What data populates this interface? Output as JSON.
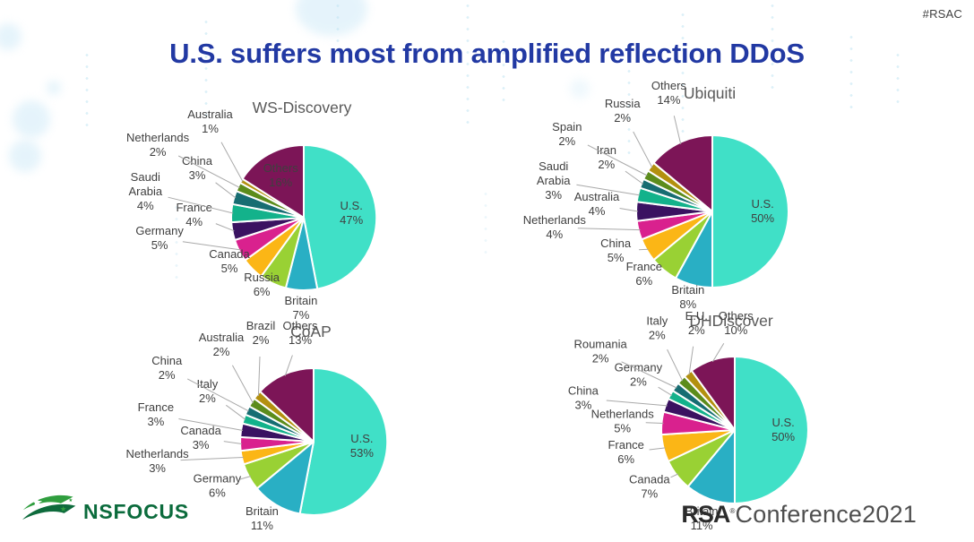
{
  "slide": {
    "title": "U.S. suffers most from amplified reflection DDoS",
    "hashtag": "#RSAC",
    "title_color": "#2239A3",
    "hashtag_color": "#3E3E3E",
    "background_color": "#FFFFFF"
  },
  "palette": [
    "#40E0C7",
    "#29AFC4",
    "#99D134",
    "#FBB616",
    "#D9218E",
    "#3A1261",
    "#13B28B",
    "#176D72",
    "#5C8C1B",
    "#B3900F",
    "#7C1557"
  ],
  "chart_style": {
    "title_color": "#595959",
    "label_color": "#3F3F3F",
    "leader_line_color": "#A9A9A9",
    "slice_border_color": "#FFFFFF"
  },
  "chart_data": [
    {
      "type": "pie",
      "title": "WS-Discovery",
      "unit": "%",
      "labels": [
        "U.S.",
        "Britain",
        "Russia",
        "Canada",
        "Germany",
        "France",
        "Saudi Arabia",
        "China",
        "Netherlands",
        "Australia",
        "Others"
      ],
      "values": [
        47,
        7,
        6,
        5,
        5,
        4,
        4,
        3,
        2,
        1,
        16
      ],
      "inside_labels": [
        "U.S.",
        "Others"
      ],
      "legend": "none"
    },
    {
      "type": "pie",
      "title": "Ubiquiti",
      "unit": "%",
      "labels": [
        "U.S.",
        "Britain",
        "France",
        "China",
        "Netherlands",
        "Australia",
        "Saudi Arabia",
        "Iran",
        "Spain",
        "Russia",
        "Others"
      ],
      "values": [
        50,
        8,
        6,
        5,
        4,
        4,
        3,
        2,
        2,
        2,
        14
      ],
      "inside_labels": [
        "U.S."
      ],
      "legend": "none"
    },
    {
      "type": "pie",
      "title": "CoAP",
      "unit": "%",
      "labels": [
        "U.S.",
        "Britain",
        "Germany",
        "Netherlands",
        "Canada",
        "France",
        "Italy",
        "China",
        "Australia",
        "Brazil",
        "Others"
      ],
      "values": [
        53,
        11,
        6,
        3,
        3,
        3,
        2,
        2,
        2,
        2,
        13
      ],
      "inside_labels": [
        "U.S."
      ],
      "legend": "none"
    },
    {
      "type": "pie",
      "title": "DHDiscover",
      "unit": "%",
      "labels": [
        "U.S.",
        "Britain",
        "Canada",
        "France",
        "Netherlands",
        "China",
        "Germany",
        "Roumania",
        "Italy",
        "E.U.",
        "Others"
      ],
      "values": [
        50,
        11,
        7,
        6,
        5,
        3,
        2,
        2,
        2,
        2,
        10
      ],
      "inside_labels": [
        "U.S."
      ],
      "legend": "none"
    }
  ],
  "footer": {
    "nsfocus_text": "NSFOCUS",
    "nsfocus_color": "#0B6B3C",
    "rsa_bold": "RSA",
    "rsa_reg": "®",
    "rsa_rest": "Conference2021"
  }
}
